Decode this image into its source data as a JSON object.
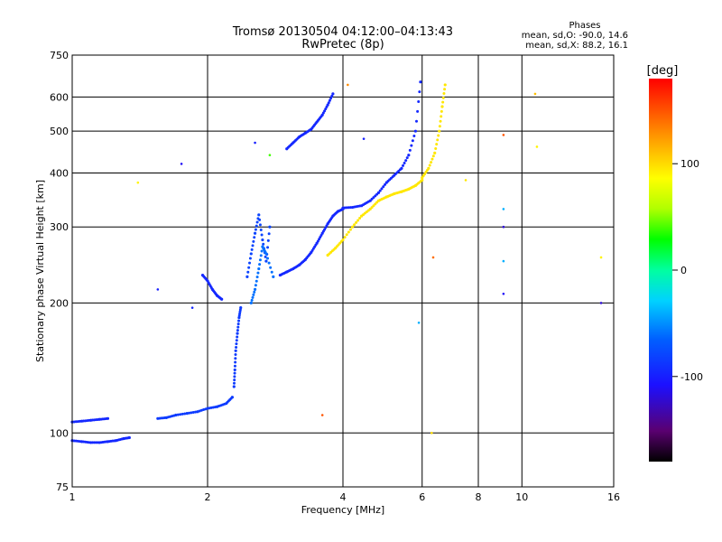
{
  "chart_data": {
    "type": "scatter",
    "title": "Tromsø 20130504 04:12:00–04:13:43",
    "subtitle": "RwPretec (8p)",
    "xlabel": "Frequency [MHz]",
    "ylabel": "Stationary phase Virtual Height [km]",
    "x_scale": "log",
    "y_scale": "log",
    "xlim": [
      1,
      16
    ],
    "ylim": [
      75,
      750
    ],
    "x_ticks": [
      1,
      2,
      4,
      6,
      8,
      10,
      16
    ],
    "x_tick_labels": [
      "1",
      "2",
      "4",
      "6",
      "8",
      "10",
      "16"
    ],
    "y_ticks": [
      75,
      100,
      200,
      300,
      400,
      500,
      600,
      750
    ],
    "y_tick_labels": [
      "75",
      "100",
      "200",
      "300",
      "400",
      "500",
      "600",
      "750"
    ],
    "grid": true,
    "phases_header": "Phases",
    "stats": [
      "mean, sd,O: -90.0, 14.6",
      "mean, sd,X: 88.2, 16.1"
    ],
    "colorbar": {
      "label": "[deg]",
      "range": [
        -180,
        180
      ],
      "ticks": [
        100,
        0,
        -100
      ],
      "tick_labels": [
        "100",
        "0",
        "-100"
      ]
    },
    "traces": [
      {
        "phase": -95,
        "x": [
          1.0,
          1.05,
          1.1,
          1.15,
          1.2,
          1.25,
          1.3,
          1.34
        ],
        "y": [
          96,
          95.5,
          95,
          95,
          95.5,
          96,
          97,
          97.5
        ]
      },
      {
        "phase": -95,
        "x": [
          1.0,
          1.05,
          1.1,
          1.15,
          1.2
        ],
        "y": [
          106,
          106.5,
          107,
          107.5,
          108
        ]
      },
      {
        "phase": -85,
        "x": [
          1.55,
          1.62,
          1.7,
          1.8,
          1.9,
          2.0,
          2.1,
          2.2,
          2.27
        ],
        "y": [
          108,
          108.5,
          110,
          111,
          112,
          114,
          115,
          117,
          121
        ]
      },
      {
        "phase": -85,
        "x": [
          2.29,
          2.3,
          2.31,
          2.33,
          2.35,
          2.37
        ],
        "y": [
          128,
          140,
          155,
          170,
          185,
          195
        ]
      },
      {
        "phase": -95,
        "x": [
          1.95,
          2.0,
          2.05,
          2.1,
          2.15
        ],
        "y": [
          232,
          225,
          215,
          208,
          204
        ]
      },
      {
        "phase": -80,
        "x": [
          2.45,
          2.5,
          2.55,
          2.6,
          2.65,
          2.7,
          2.75
        ],
        "y": [
          230,
          260,
          290,
          320,
          280,
          250,
          300
        ]
      },
      {
        "phase": -60,
        "x": [
          2.5,
          2.55,
          2.6,
          2.65,
          2.7,
          2.8
        ],
        "y": [
          200,
          215,
          240,
          270,
          260,
          230
        ]
      },
      {
        "phase": -95,
        "x": [
          2.9,
          3.0,
          3.1,
          3.2,
          3.3,
          3.4,
          3.5,
          3.6,
          3.7,
          3.8,
          3.9,
          4.0
        ],
        "y": [
          232,
          236,
          240,
          245,
          252,
          262,
          275,
          290,
          305,
          318,
          326,
          330
        ]
      },
      {
        "phase": -95,
        "x": [
          4.0,
          4.2,
          4.4,
          4.6,
          4.8,
          5.0,
          5.2,
          5.4,
          5.6,
          5.8,
          5.95
        ],
        "y": [
          332,
          333,
          336,
          345,
          360,
          380,
          395,
          410,
          440,
          500,
          650
        ]
      },
      {
        "phase": 95,
        "x": [
          3.7,
          3.85,
          4.0,
          4.2,
          4.4,
          4.6,
          4.8,
          5.0,
          5.2,
          5.4,
          5.6,
          5.8,
          6.0
        ],
        "y": [
          258,
          268,
          280,
          300,
          318,
          330,
          345,
          352,
          358,
          362,
          367,
          374,
          385
        ]
      },
      {
        "phase": 95,
        "x": [
          6.0,
          6.2,
          6.4,
          6.55,
          6.65,
          6.75
        ],
        "y": [
          390,
          410,
          445,
          500,
          570,
          640
        ]
      },
      {
        "phase": -95,
        "x": [
          3.0,
          3.1,
          3.2,
          3.3,
          3.4,
          3.5,
          3.6,
          3.7,
          3.8
        ],
        "y": [
          455,
          470,
          485,
          495,
          505,
          525,
          545,
          575,
          610
        ]
      }
    ],
    "scattered_points": [
      {
        "x": 1.4,
        "y": 380,
        "phase": 90
      },
      {
        "x": 1.55,
        "y": 215,
        "phase": -100
      },
      {
        "x": 1.75,
        "y": 420,
        "phase": -110
      },
      {
        "x": 1.85,
        "y": 195,
        "phase": -95
      },
      {
        "x": 2.55,
        "y": 470,
        "phase": -100
      },
      {
        "x": 2.75,
        "y": 440,
        "phase": 40
      },
      {
        "x": 3.6,
        "y": 110,
        "phase": 150
      },
      {
        "x": 4.1,
        "y": 640,
        "phase": 130
      },
      {
        "x": 4.45,
        "y": 480,
        "phase": -100
      },
      {
        "x": 5.9,
        "y": 180,
        "phase": -40
      },
      {
        "x": 6.35,
        "y": 255,
        "phase": 140
      },
      {
        "x": 6.3,
        "y": 100,
        "phase": 100
      },
      {
        "x": 7.5,
        "y": 385,
        "phase": 95
      },
      {
        "x": 9.1,
        "y": 490,
        "phase": 150
      },
      {
        "x": 9.1,
        "y": 330,
        "phase": -40
      },
      {
        "x": 9.1,
        "y": 300,
        "phase": -120
      },
      {
        "x": 9.1,
        "y": 250,
        "phase": -40
      },
      {
        "x": 9.1,
        "y": 210,
        "phase": -110
      },
      {
        "x": 10.7,
        "y": 610,
        "phase": 110
      },
      {
        "x": 10.8,
        "y": 460,
        "phase": 90
      },
      {
        "x": 15.0,
        "y": 200,
        "phase": -120
      },
      {
        "x": 15.0,
        "y": 255,
        "phase": 90
      }
    ]
  }
}
